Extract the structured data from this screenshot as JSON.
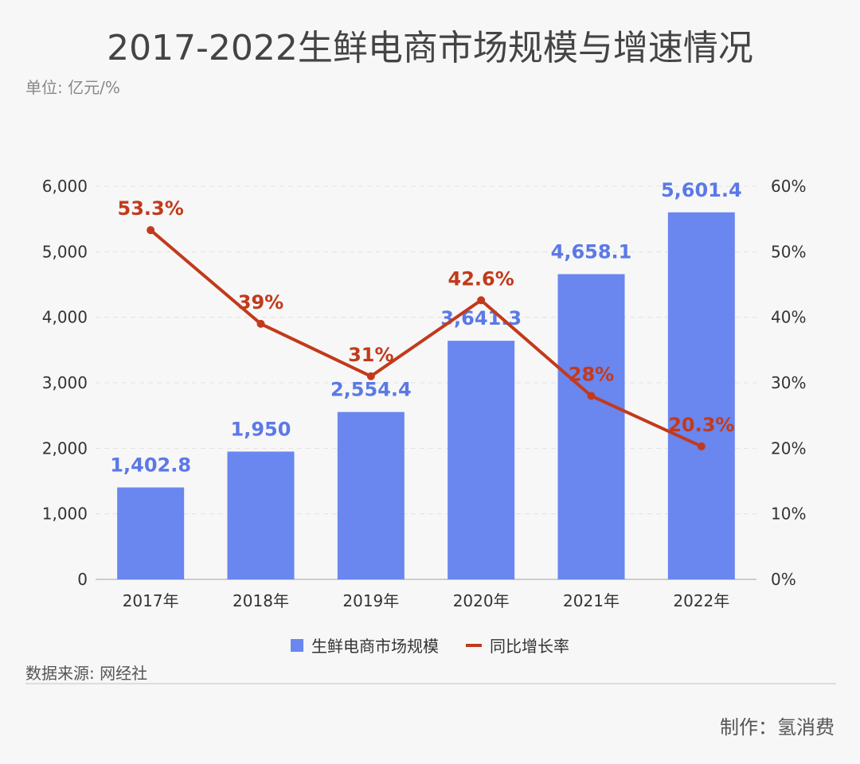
{
  "header": {
    "title": "2017-2022生鲜电商市场规模与增速情况",
    "unit": "单位: 亿元/%"
  },
  "legend": {
    "bar_label": "生鲜电商市场规模",
    "line_label": "同比增长率"
  },
  "footer": {
    "source": "数据来源: 网经社",
    "credit": "制作：氢消费"
  },
  "colors": {
    "bar": "#6a86ef",
    "bar_label": "#5b79e6",
    "line": "#c23a1c",
    "line_label": "#c23a1c"
  },
  "chart_data": {
    "type": "bar",
    "categories": [
      "2017年",
      "2018年",
      "2019年",
      "2020年",
      "2021年",
      "2022年"
    ],
    "series": [
      {
        "name": "生鲜电商市场规模",
        "type": "bar",
        "axis": "left",
        "values": [
          1402.8,
          1950,
          2554.4,
          3641.3,
          4658.1,
          5601.4
        ],
        "labels": [
          "1,402.8",
          "1,950",
          "2,554.4",
          "3,641.3",
          "4,658.1",
          "5,601.4"
        ]
      },
      {
        "name": "同比增长率",
        "type": "line",
        "axis": "right",
        "values": [
          53.3,
          39,
          31,
          42.6,
          28,
          20.3
        ],
        "labels": [
          "53.3%",
          "39%",
          "31%",
          "42.6%",
          "28%",
          "20.3%"
        ]
      }
    ],
    "y_left": {
      "ylim": [
        0,
        6000
      ],
      "ticks": [
        0,
        1000,
        2000,
        3000,
        4000,
        5000,
        6000
      ],
      "tick_labels": [
        "0",
        "1,000",
        "2,000",
        "3,000",
        "4,000",
        "5,000",
        "6,000"
      ]
    },
    "y_right": {
      "ylim": [
        0,
        60
      ],
      "ticks": [
        0,
        10,
        20,
        30,
        40,
        50,
        60
      ],
      "tick_labels": [
        "0%",
        "10%",
        "20%",
        "30%",
        "40%",
        "50%",
        "60%"
      ]
    },
    "grid": true,
    "legend_position": "bottom"
  }
}
